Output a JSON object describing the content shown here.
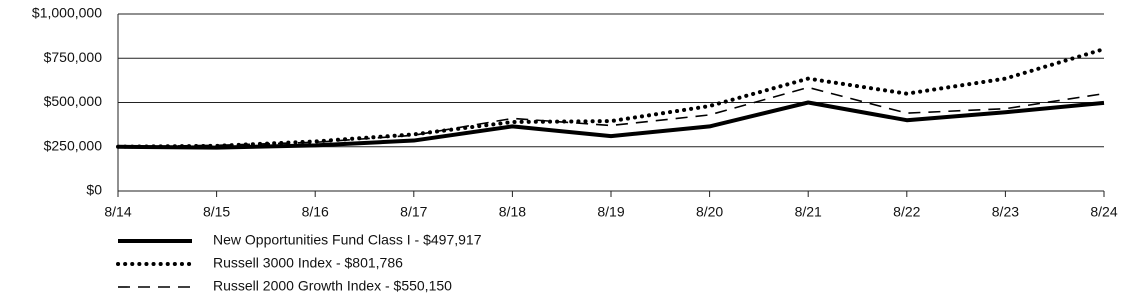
{
  "chart_data": {
    "type": "line",
    "categories": [
      "8/14",
      "8/15",
      "8/16",
      "8/17",
      "8/18",
      "8/19",
      "8/20",
      "8/21",
      "8/22",
      "8/23",
      "8/24"
    ],
    "series": [
      {
        "name": "New Opportunities Fund Class I - $497,917",
        "color": "#000000",
        "line_style": "solid",
        "values": [
          250000,
          245000,
          258000,
          285000,
          365000,
          310000,
          365000,
          500000,
          400000,
          445000,
          497917
        ]
      },
      {
        "name": "Russell 3000 Index - $801,786",
        "color": "#000000",
        "line_style": "dotted",
        "values": [
          250000,
          255000,
          280000,
          320000,
          390000,
          395000,
          480000,
          635000,
          550000,
          635000,
          801786
        ]
      },
      {
        "name": "Russell 2000 Growth Index - $550,150",
        "color": "#000000",
        "line_style": "dashed",
        "values": [
          250000,
          258000,
          275000,
          315000,
          410000,
          370000,
          430000,
          585000,
          440000,
          465000,
          550150
        ]
      }
    ],
    "ylim": [
      0,
      1000000
    ],
    "yticks": [
      {
        "value": 0,
        "label": "$0"
      },
      {
        "value": 250000,
        "label": "$250,000"
      },
      {
        "value": 500000,
        "label": "$500,000"
      },
      {
        "value": 750000,
        "label": "$750,000"
      },
      {
        "value": 1000000,
        "label": "$1,000,000"
      }
    ],
    "grid": true
  }
}
